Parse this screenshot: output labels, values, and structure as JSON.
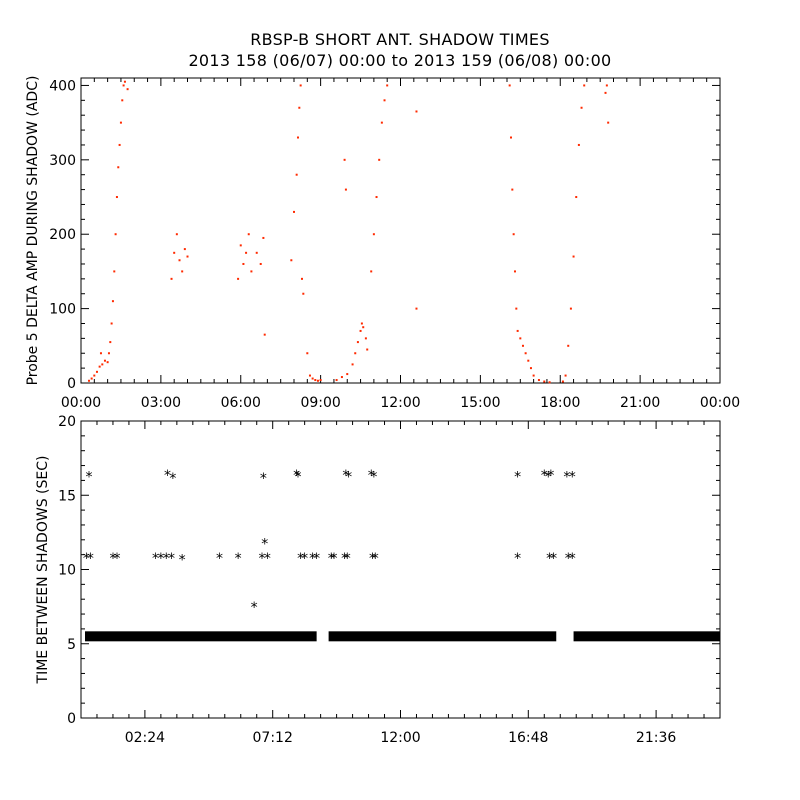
{
  "figure": {
    "title": "RBSP-B SHORT ANT. SHADOW TIMES",
    "subtitle": "2013 158 (06/07) 00:00 to 2013 159 (06/08) 00:00"
  },
  "chart_data": [
    {
      "type": "scatter",
      "title": "RBSP-B SHORT ANT. SHADOW TIMES",
      "ylabel": "Probe 5 DELTA AMP DURING SHADOW (ADC)",
      "xlabel": "",
      "x_unit": "hours",
      "xlim": [
        0,
        24
      ],
      "ylim": [
        0,
        410
      ],
      "x_ticks": [
        0,
        3,
        6,
        9,
        12,
        15,
        18,
        21,
        24
      ],
      "x_tick_labels": [
        "00:00",
        "03:00",
        "06:00",
        "09:00",
        "12:00",
        "15:00",
        "18:00",
        "21:00",
        "00:00"
      ],
      "y_ticks": [
        0,
        100,
        200,
        300,
        400
      ],
      "y_tick_labels": [
        "0",
        "100",
        "200",
        "300",
        "400"
      ],
      "marker": "dot",
      "color": "#ff2a00",
      "series": [
        {
          "points": [
            [
              0.3,
              3
            ],
            [
              0.4,
              6
            ],
            [
              0.5,
              10
            ],
            [
              0.6,
              15
            ],
            [
              0.7,
              22
            ],
            [
              0.75,
              40
            ],
            [
              0.8,
              25
            ],
            [
              0.9,
              30
            ],
            [
              1.0,
              28
            ],
            [
              1.05,
              40
            ],
            [
              1.1,
              55
            ],
            [
              1.15,
              80
            ],
            [
              1.2,
              110
            ],
            [
              1.25,
              150
            ],
            [
              1.3,
              200
            ],
            [
              1.35,
              250
            ],
            [
              1.4,
              290
            ],
            [
              1.45,
              320
            ],
            [
              1.5,
              350
            ],
            [
              1.55,
              380
            ],
            [
              1.6,
              400
            ],
            [
              1.65,
              405
            ],
            [
              1.75,
              395
            ],
            [
              3.4,
              140
            ],
            [
              3.5,
              175
            ],
            [
              3.6,
              200
            ],
            [
              3.7,
              165
            ],
            [
              3.8,
              150
            ],
            [
              3.9,
              180
            ],
            [
              4.0,
              170
            ],
            [
              5.9,
              140
            ],
            [
              6.0,
              185
            ],
            [
              6.1,
              160
            ],
            [
              6.2,
              175
            ],
            [
              6.3,
              200
            ],
            [
              6.4,
              150
            ],
            [
              6.6,
              175
            ],
            [
              6.75,
              160
            ],
            [
              6.85,
              195
            ],
            [
              6.9,
              65
            ],
            [
              7.9,
              165
            ],
            [
              8.0,
              230
            ],
            [
              8.1,
              280
            ],
            [
              8.15,
              330
            ],
            [
              8.2,
              370
            ],
            [
              8.25,
              400
            ],
            [
              8.3,
              140
            ],
            [
              8.35,
              120
            ],
            [
              8.5,
              40
            ],
            [
              8.6,
              10
            ],
            [
              8.7,
              6
            ],
            [
              8.8,
              4
            ],
            [
              8.9,
              3
            ],
            [
              9.0,
              4
            ],
            [
              9.6,
              4
            ],
            [
              9.8,
              8
            ],
            [
              10.0,
              12
            ],
            [
              10.2,
              25
            ],
            [
              10.3,
              40
            ],
            [
              10.4,
              55
            ],
            [
              10.5,
              70
            ],
            [
              10.55,
              80
            ],
            [
              10.6,
              75
            ],
            [
              10.7,
              60
            ],
            [
              10.75,
              45
            ],
            [
              10.9,
              150
            ],
            [
              11.0,
              200
            ],
            [
              11.1,
              250
            ],
            [
              11.2,
              300
            ],
            [
              11.3,
              350
            ],
            [
              11.4,
              380
            ],
            [
              11.5,
              400
            ],
            [
              9.9,
              300
            ],
            [
              9.95,
              260
            ],
            [
              12.6,
              365
            ],
            [
              12.6,
              100
            ],
            [
              16.1,
              400
            ],
            [
              16.15,
              330
            ],
            [
              16.2,
              260
            ],
            [
              16.25,
              200
            ],
            [
              16.3,
              150
            ],
            [
              16.35,
              100
            ],
            [
              16.4,
              70
            ],
            [
              16.5,
              60
            ],
            [
              16.6,
              50
            ],
            [
              16.7,
              40
            ],
            [
              16.8,
              30
            ],
            [
              16.9,
              20
            ],
            [
              17.0,
              10
            ],
            [
              17.2,
              4
            ],
            [
              17.4,
              2
            ],
            [
              17.6,
              1
            ],
            [
              18.1,
              2
            ],
            [
              18.2,
              10
            ],
            [
              18.3,
              50
            ],
            [
              18.4,
              100
            ],
            [
              18.5,
              170
            ],
            [
              18.6,
              250
            ],
            [
              18.7,
              320
            ],
            [
              18.8,
              370
            ],
            [
              18.9,
              400
            ],
            [
              19.7,
              390
            ],
            [
              19.75,
              400
            ],
            [
              19.8,
              350
            ]
          ]
        }
      ]
    },
    {
      "type": "scatter",
      "ylabel": "TIME BETWEEN SHADOWS (SEC)",
      "xlabel": "",
      "x_unit": "hours",
      "xlim": [
        0,
        24
      ],
      "ylim": [
        0,
        20
      ],
      "x_ticks": [
        2.4,
        7.2,
        12.0,
        16.8,
        21.6
      ],
      "x_tick_labels": [
        "02:24",
        "07:12",
        "12:00",
        "16:48",
        "21:36"
      ],
      "y_ticks": [
        0,
        5,
        10,
        15,
        20
      ],
      "y_tick_labels": [
        "0",
        "5",
        "10",
        "15",
        "20"
      ],
      "marker": "asterisk",
      "color": "#000000",
      "baseline": {
        "value": 5.5,
        "ranges": [
          [
            0.15,
            8.85
          ],
          [
            9.3,
            17.85
          ],
          [
            18.5,
            24
          ]
        ]
      },
      "series": [
        {
          "points": [
            [
              0.3,
              16.4
            ],
            [
              0.2,
              10.9
            ],
            [
              0.35,
              10.9
            ],
            [
              1.2,
              10.9
            ],
            [
              1.35,
              10.9
            ],
            [
              2.8,
              10.9
            ],
            [
              3.0,
              10.9
            ],
            [
              3.2,
              10.9
            ],
            [
              3.4,
              10.9
            ],
            [
              3.8,
              10.8
            ],
            [
              3.25,
              16.5
            ],
            [
              3.45,
              16.3
            ],
            [
              5.2,
              10.9
            ],
            [
              5.9,
              10.9
            ],
            [
              6.5,
              7.6
            ],
            [
              6.8,
              10.9
            ],
            [
              6.85,
              16.3
            ],
            [
              6.9,
              11.9
            ],
            [
              7.0,
              10.9
            ],
            [
              8.1,
              16.5
            ],
            [
              8.15,
              16.4
            ],
            [
              8.25,
              10.9
            ],
            [
              8.4,
              10.9
            ],
            [
              8.7,
              10.9
            ],
            [
              8.85,
              10.9
            ],
            [
              9.4,
              10.9
            ],
            [
              9.5,
              10.9
            ],
            [
              9.9,
              10.9
            ],
            [
              10.0,
              10.9
            ],
            [
              9.95,
              16.5
            ],
            [
              10.05,
              16.4
            ],
            [
              10.9,
              16.5
            ],
            [
              11.0,
              16.4
            ],
            [
              10.95,
              10.9
            ],
            [
              11.05,
              10.9
            ],
            [
              16.4,
              16.4
            ],
            [
              16.4,
              10.9
            ],
            [
              17.4,
              16.5
            ],
            [
              17.55,
              16.4
            ],
            [
              17.65,
              16.5
            ],
            [
              17.6,
              10.9
            ],
            [
              17.75,
              10.9
            ],
            [
              18.25,
              16.4
            ],
            [
              18.45,
              16.4
            ],
            [
              18.3,
              10.9
            ],
            [
              18.45,
              10.9
            ]
          ]
        }
      ]
    }
  ]
}
